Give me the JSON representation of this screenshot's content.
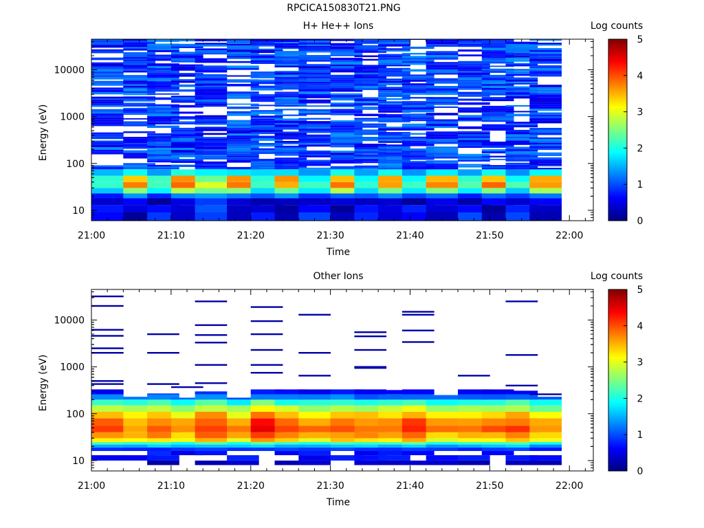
{
  "figure": {
    "title": "RPCICA150830T21.PNG"
  },
  "colormap": {
    "stops": [
      "#00007f",
      "#0000ff",
      "#007fff",
      "#00ffff",
      "#7fff7f",
      "#ffff00",
      "#ff7f00",
      "#ff0000",
      "#7f0000"
    ]
  },
  "chart_data": [
    {
      "type": "heatmap",
      "title": "H+ He++ Ions",
      "xlabel": "Time",
      "ylabel": "Energy (eV)",
      "y_scale": "log",
      "ylim": [
        6,
        45000
      ],
      "xlim": [
        "21:00",
        "22:03"
      ],
      "x_ticks": [
        "21:00",
        "21:10",
        "21:20",
        "21:30",
        "21:40",
        "21:50",
        "22:00"
      ],
      "y_ticks": [
        "10",
        "100",
        "1000",
        "10000"
      ],
      "colorbar": {
        "label": "Log counts",
        "range": [
          0,
          5
        ],
        "ticks": [
          "0",
          "1",
          "2",
          "3",
          "4",
          "5"
        ]
      },
      "time_bins": [
        "21:02",
        "21:06",
        "21:09",
        "21:12",
        "21:15",
        "21:19",
        "21:22",
        "21:25",
        "21:28",
        "21:32",
        "21:35",
        "21:38",
        "21:41",
        "21:44",
        "21:48",
        "21:51",
        "21:54",
        "21:57"
      ],
      "low_energy_profiles": {
        "A": [
          [
            "6-9",
            0.8
          ],
          [
            "9-13",
            0.6
          ],
          [
            "13-18",
            0.2
          ],
          [
            "18-23",
            0.9
          ],
          [
            "23-30",
            1.8
          ],
          [
            "30-40",
            2.3
          ],
          [
            "40-55",
            2.0
          ],
          [
            "55-75",
            1.5
          ]
        ],
        "B": [
          [
            "6-9",
            0.3
          ],
          [
            "9-13",
            0.3
          ],
          [
            "13-18",
            0.5
          ],
          [
            "18-23",
            1.2
          ],
          [
            "23-30",
            2.6
          ],
          [
            "30-40",
            3.7
          ],
          [
            "40-55",
            3.5
          ],
          [
            "55-75",
            1.9
          ]
        ],
        "C": [
          [
            "6-9",
            1.0
          ],
          [
            "9-13",
            1.0
          ],
          [
            "13-18",
            0.8
          ],
          [
            "18-23",
            1.4
          ],
          [
            "23-30",
            2.4
          ],
          [
            "30-40",
            3.0
          ],
          [
            "40-55",
            2.6
          ],
          [
            "55-75",
            1.8
          ]
        ]
      },
      "profile_per_bin": [
        "A",
        "B",
        "A",
        "B",
        "C",
        "B",
        "A",
        "B",
        "A",
        "B",
        "A",
        "B",
        "A",
        "B",
        "A",
        "B",
        "A",
        "B"
      ],
      "high_energy_level": 0.9
    },
    {
      "type": "heatmap",
      "title": "Other Ions",
      "xlabel": "Time",
      "ylabel": "Energy (eV)",
      "y_scale": "log",
      "ylim": [
        6,
        45000
      ],
      "xlim": [
        "21:00",
        "22:03"
      ],
      "x_ticks": [
        "21:00",
        "21:10",
        "21:20",
        "21:30",
        "21:40",
        "21:50",
        "22:00"
      ],
      "y_ticks": [
        "10",
        "100",
        "1000",
        "10000"
      ],
      "colorbar": {
        "label": "Log counts",
        "range": [
          0,
          5
        ],
        "ticks": [
          "0",
          "1",
          "2",
          "3",
          "4",
          "5"
        ]
      },
      "time_bins": [
        "21:02",
        "21:06",
        "21:09",
        "21:12",
        "21:15",
        "21:19",
        "21:22",
        "21:25",
        "21:28",
        "21:32",
        "21:35",
        "21:38",
        "21:41",
        "21:44",
        "21:48",
        "21:51",
        "21:54",
        "21:57"
      ],
      "spectrum_profile": [
        [
          "8-10",
          0.3
        ],
        [
          "10-13",
          0.7
        ],
        [
          "13-16",
          0.7
        ],
        [
          "16-19",
          0.9
        ],
        [
          "19-22",
          1.6
        ],
        [
          "22-25",
          2.2
        ],
        [
          "25-30",
          3.3
        ],
        [
          "30-40",
          3.7
        ],
        [
          "40-55",
          4.0
        ],
        [
          "55-80",
          3.8
        ],
        [
          "80-110",
          3.4
        ],
        [
          "110-150",
          2.8
        ],
        [
          "150-200",
          2.1
        ],
        [
          "200-260",
          1.2
        ],
        [
          "260-330",
          0.7
        ]
      ],
      "spectrum_top_per_bin": [
        480,
        230,
        270,
        220,
        300,
        220,
        550,
        370,
        380,
        390,
        400,
        320,
        400,
        250,
        380,
        370,
        310,
        230
      ],
      "spectrum_peak_per_bin": [
        4.0,
        3.7,
        4.0,
        3.6,
        4.2,
        3.7,
        4.5,
        4.0,
        3.8,
        4.0,
        3.9,
        3.9,
        4.2,
        3.7,
        3.8,
        3.9,
        4.1,
        3.6
      ],
      "sparse_high_energy_lines": [
        [
          32000,
          2000,
          20000,
          6200,
          4600,
          2500,
          500,
          430
        ],
        [],
        [
          5000,
          2000,
          430
        ],
        [
          370
        ],
        [
          25000,
          7800,
          4800,
          3300,
          1100,
          450
        ],
        [],
        [
          19000,
          9500,
          5000,
          2300,
          1100,
          750
        ],
        [],
        [
          13000,
          2000,
          650
        ],
        [],
        [
          5500,
          4500,
          2300,
          1000,
          950
        ],
        [],
        [
          15000,
          13000,
          6000,
          3400
        ],
        [],
        [
          650
        ],
        [],
        [
          25000,
          1800,
          400
        ],
        [
          260
        ]
      ]
    }
  ]
}
